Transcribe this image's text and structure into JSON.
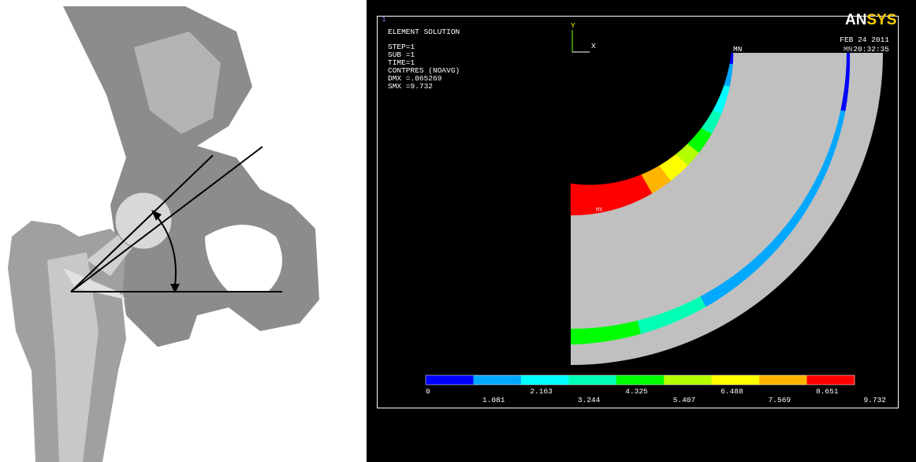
{
  "window_number": "1",
  "info": [
    "ELEMENT SOLUTION",
    "STEP=1",
    "SUB =1",
    "TIME=1",
    "CONTPRES (NOAVG)",
    "DMX =.065269",
    "SMX =9.732"
  ],
  "triad": {
    "y": "Y",
    "x": "X"
  },
  "logo": {
    "part1": "AN",
    "part2": "SYS"
  },
  "date": "FEB 24 2011",
  "time": "20:32:35",
  "min_labels": [
    "MN",
    "MN"
  ],
  "max_label": "MX",
  "legend": {
    "colors": [
      "#0000ff",
      "#00a8ff",
      "#00ffff",
      "#00ffb4",
      "#00ff00",
      "#b4ff00",
      "#ffff00",
      "#ffb400",
      "#ff0000"
    ],
    "labels": [
      "0",
      "1.081",
      "2.163",
      "3.244",
      "4.325",
      "5.407",
      "6.488",
      "7.569",
      "8.651",
      "9.732"
    ]
  }
}
